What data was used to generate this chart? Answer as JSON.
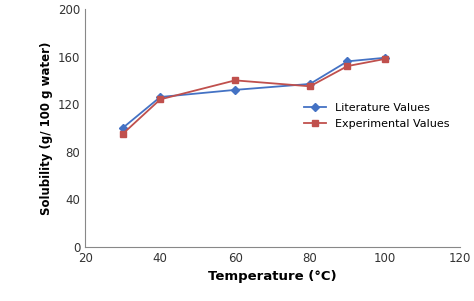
{
  "temp": [
    30,
    40,
    60,
    80,
    90,
    100
  ],
  "literature_values": [
    100,
    126,
    132,
    137,
    156,
    159
  ],
  "experimental_values": [
    95,
    124,
    140,
    135,
    152,
    158
  ],
  "lit_color": "#4472C4",
  "exp_color": "#C0504D",
  "lit_label": "Literature Values",
  "exp_label": "Experimental Values",
  "lit_marker": "D",
  "exp_marker": "s",
  "xlabel": "Temperature (°C)",
  "ylabel": "Solubility (g/ 100 g water)",
  "xlim": [
    20,
    120
  ],
  "ylim": [
    0,
    200
  ],
  "xticks": [
    20,
    40,
    60,
    80,
    100,
    120
  ],
  "yticks": [
    0,
    40,
    80,
    120,
    160,
    200
  ],
  "marker_size": 4.5,
  "line_width": 1.3,
  "bg_color": "#ffffff"
}
